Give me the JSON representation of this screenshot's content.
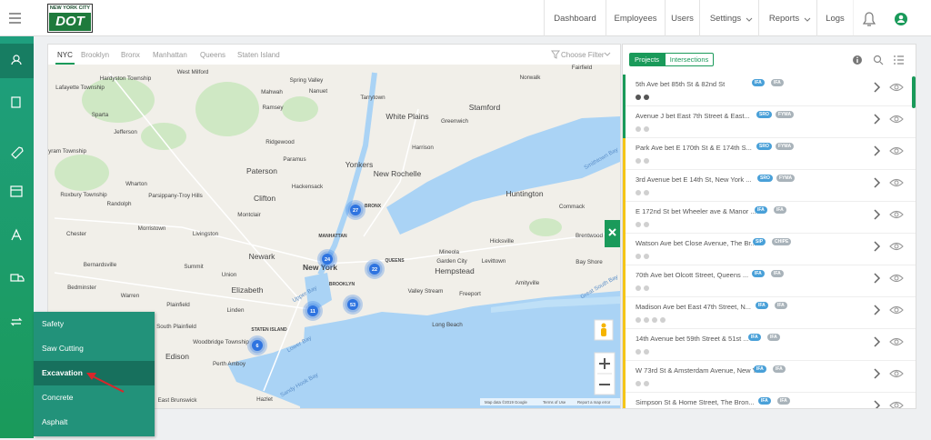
{
  "header": {
    "logo": {
      "line1": "NEW YORK CITY",
      "line2": "DOT"
    },
    "nav": [
      "Dashboard",
      "Employees",
      "Users",
      "Settings",
      "Reports",
      "Logs"
    ]
  },
  "map": {
    "tabs": [
      "NYC",
      "Brooklyn",
      "Bronx",
      "Manhattan",
      "Queens",
      "Staten Island"
    ],
    "filter": "Choose Filter",
    "places": [
      "West Milford",
      "Hardyston Township",
      "Lafayette Township",
      "Spring Valley",
      "Nanuet",
      "Mahwah",
      "Tarrytown",
      "Norwalk",
      "Sparta",
      "Ramsey",
      "White Plains",
      "Greenwich",
      "Stamford",
      "Jefferson",
      "Ridgewood",
      "Harrison",
      "Byram Township",
      "Paramus",
      "Paterson",
      "Yonkers",
      "New Rochelle",
      "Roxbury Township",
      "Wharton",
      "Parsippany-Troy Hills",
      "Hackensack",
      "Clifton",
      "Randolph",
      "Montclair",
      "Huntington",
      "Commack",
      "Chester",
      "Morristown",
      "Livingston",
      "MANHATTAN",
      "BRONX",
      "Newark",
      "New York",
      "QUEENS",
      "Mineola",
      "Hicksville",
      "Brentwood",
      "Garden City",
      "Levittown",
      "Hempstead",
      "Bay Shore",
      "Summit",
      "Union",
      "Bernardsville",
      "Bedminster",
      "Elizabeth",
      "BROOKLYN",
      "Valley Stream",
      "Freeport",
      "Amityville",
      "Warren",
      "Plainfield",
      "Linden",
      "STATEN ISLAND",
      "South Plainfield",
      "Long Beach",
      "Woodbridge Township",
      "Edison",
      "Perth Amboy",
      "East Brunswick",
      "Hazlet",
      "Fairfield",
      "Smithtown Bay",
      "Great South Bay",
      "Lower Bay",
      "Sandy Hook Bay",
      "Upper Bay"
    ],
    "clusters": [
      27,
      24,
      22,
      11,
      53,
      6
    ],
    "footer": [
      "Map data ©2019 Google",
      "Terms of Use",
      "Report a map error"
    ]
  },
  "projects": {
    "tabs": [
      "Projects",
      "Intersections"
    ],
    "items": [
      {
        "name": "5th Ave bet 85th St & 82nd St",
        "badges": [
          "IFA",
          "IFA"
        ]
      },
      {
        "name": "Avenue J bet East 7th Street & East...",
        "badges": [
          "SRO",
          "FYMA"
        ]
      },
      {
        "name": "Park Ave bet E 170th St & E 174th S...",
        "badges": [
          "SRO",
          "FYMA"
        ]
      },
      {
        "name": "3rd Avenue bet E 14th St, New York ...",
        "badges": [
          "SRO",
          "FYMA"
        ]
      },
      {
        "name": "E 172nd St bet Wheeler ave & Manor ...",
        "badges": [
          "IFA",
          "IFA"
        ]
      },
      {
        "name": "Watson Ave bet Close Avenue, The Br...",
        "badges": [
          "SIP",
          "CHIPE"
        ]
      },
      {
        "name": "70th Ave bet Olcott Street, Queens ...",
        "badges": [
          "IFA",
          "IFA"
        ]
      },
      {
        "name": "Madison Ave bet East 47th Street, N...",
        "badges": [
          "IFA",
          "IFA"
        ]
      },
      {
        "name": "14th Avenue bet 59th Street & 51st ...",
        "badges": [
          "IFA",
          "IFA"
        ]
      },
      {
        "name": "W 73rd St & Amsterdam Avenue, New Y...",
        "badges": [
          "IFA",
          "IFA"
        ]
      },
      {
        "name": "Simpson St & Home Street, The Bron...",
        "badges": [
          "IFA",
          "IFA"
        ]
      }
    ]
  },
  "menu": [
    "Safety",
    "Saw Cutting",
    "Excavation",
    "Concrete",
    "Asphalt"
  ]
}
